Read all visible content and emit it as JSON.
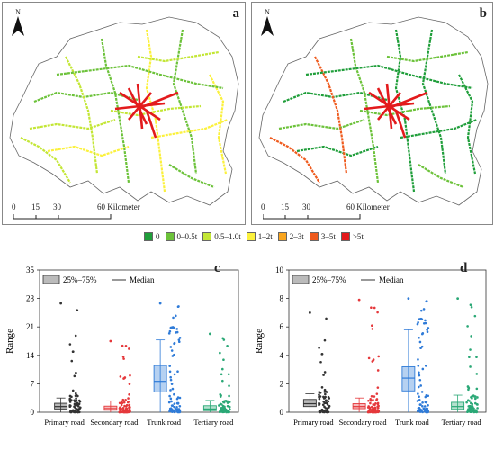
{
  "panels": {
    "a": {
      "label": "a",
      "north": "N"
    },
    "b": {
      "label": "b",
      "north": "N"
    },
    "c": {
      "label": "c"
    },
    "d": {
      "label": "d"
    }
  },
  "scalebar": {
    "ticks": [
      "0",
      "15",
      "30",
      "60 Kilometer"
    ]
  },
  "map_legend": [
    {
      "label": "0",
      "color": "#1f9e3a"
    },
    {
      "label": "0–0.5t",
      "color": "#6cc23a"
    },
    {
      "label": "0.5–1.0t",
      "color": "#c3e635"
    },
    {
      "label": "1–2t",
      "color": "#fbf13c"
    },
    {
      "label": "2–3t",
      "color": "#f9a51e"
    },
    {
      "label": "3–5t",
      "color": "#ef5a1d"
    },
    {
      "label": ">5t",
      "color": "#e31a1c"
    }
  ],
  "box_legend": {
    "box": "25%–75%",
    "median": "Median"
  },
  "chart_data": [
    {
      "type": "box",
      "panel": "c",
      "ylabel": "Range",
      "ylim": [
        0,
        35
      ],
      "yticks": [
        0,
        7,
        14,
        21,
        28,
        35
      ],
      "categories": [
        "Primary road",
        "Secondary road",
        "Trunk road",
        "Tertiary road"
      ],
      "colors": [
        "#333333",
        "#e5383b",
        "#2f7bd8",
        "#2aa876"
      ],
      "series": [
        {
          "q1": 0.8,
          "median": 1.4,
          "q3": 2.2,
          "whisker_low": 0,
          "whisker_high": 3.5,
          "outlier_max": 26.8
        },
        {
          "q1": 0.5,
          "median": 0.9,
          "q3": 1.5,
          "whisker_low": 0,
          "whisker_high": 2.8,
          "outlier_max": 17.5
        },
        {
          "q1": 5.0,
          "median": 7.6,
          "q3": 11.5,
          "whisker_low": 0,
          "whisker_high": 17.8,
          "outlier_max": 26.8
        },
        {
          "q1": 0.4,
          "median": 0.8,
          "q3": 1.6,
          "whisker_low": 0,
          "whisker_high": 2.9,
          "outlier_max": 19.3
        }
      ]
    },
    {
      "type": "box",
      "panel": "d",
      "ylabel": "Range",
      "ylim": [
        0,
        10
      ],
      "yticks": [
        0,
        2,
        4,
        6,
        8,
        10
      ],
      "categories": [
        "Primary road",
        "Secondary road",
        "Trunk road",
        "Tertiary road"
      ],
      "colors": [
        "#333333",
        "#e5383b",
        "#2f7bd8",
        "#2aa876"
      ],
      "series": [
        {
          "q1": 0.4,
          "median": 0.6,
          "q3": 0.9,
          "whisker_low": 0,
          "whisker_high": 1.3,
          "outlier_max": 7.0
        },
        {
          "q1": 0.25,
          "median": 0.4,
          "q3": 0.6,
          "whisker_low": 0,
          "whisker_high": 1.0,
          "outlier_max": 7.9
        },
        {
          "q1": 1.5,
          "median": 2.4,
          "q3": 3.2,
          "whisker_low": 0,
          "whisker_high": 5.8,
          "outlier_max": 8.0
        },
        {
          "q1": 0.2,
          "median": 0.4,
          "q3": 0.7,
          "whisker_low": 0,
          "whisker_high": 1.2,
          "outlier_max": 8.0
        }
      ]
    }
  ]
}
